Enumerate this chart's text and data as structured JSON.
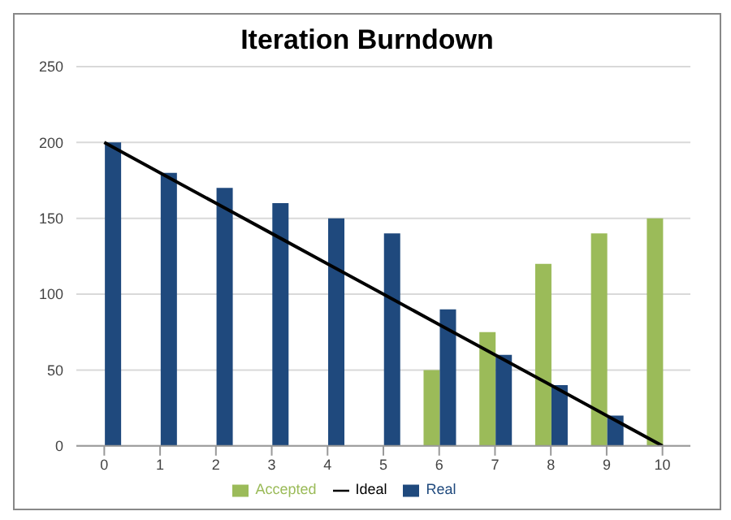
{
  "chart_data": {
    "type": "bar",
    "title": "Iteration Burndown",
    "categories": [
      "0",
      "1",
      "2",
      "3",
      "4",
      "5",
      "6",
      "7",
      "8",
      "9",
      "10"
    ],
    "series": [
      {
        "name": "Accepted",
        "color": "#9bbb59",
        "values": [
          null,
          null,
          null,
          null,
          null,
          null,
          50,
          75,
          120,
          140,
          150
        ]
      },
      {
        "name": "Real",
        "color": "#1f497d",
        "values": [
          200,
          180,
          170,
          160,
          150,
          140,
          90,
          60,
          40,
          20,
          null
        ]
      },
      {
        "name": "Ideal",
        "type": "line",
        "color": "#000000",
        "values": [
          200,
          180,
          160,
          140,
          120,
          100,
          80,
          60,
          40,
          20,
          0
        ]
      }
    ],
    "ylim": [
      0,
      250
    ],
    "yticks": [
      0,
      50,
      100,
      150,
      200,
      250
    ],
    "grid": "y",
    "legend": "bottom",
    "marker": "none"
  }
}
